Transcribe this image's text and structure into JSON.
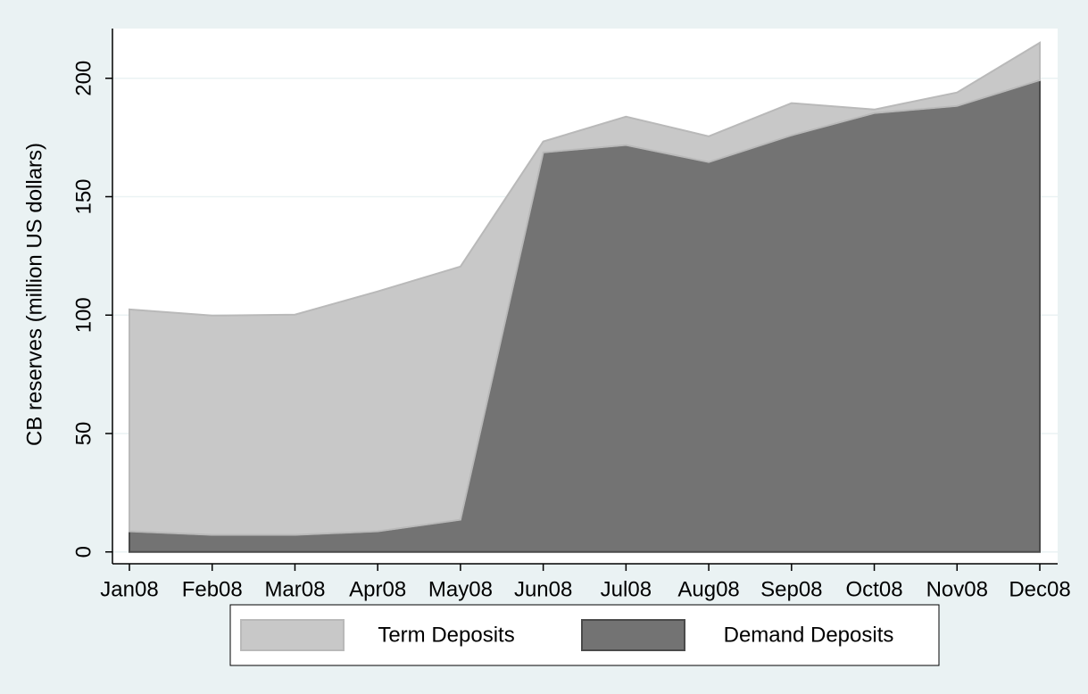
{
  "chart_data": {
    "type": "area",
    "y_label": "CB reserves (million US dollars)",
    "categories": [
      "Jan08",
      "Feb08",
      "Mar08",
      "Apr08",
      "May08",
      "Jun08",
      "Jul08",
      "Aug08",
      "Sep08",
      "Oct08",
      "Nov08",
      "Dec08"
    ],
    "series": [
      {
        "name": "Term Deposits",
        "color": "#c8c8c8",
        "values": [
          93.7,
          92.6,
          93.0,
          101.3,
          106.9,
          4.6,
          12.0,
          10.9,
          13.6,
          1.5,
          5.7,
          15.8
        ]
      },
      {
        "name": "Demand Deposits",
        "color": "#737373",
        "values": [
          8.7,
          7.2,
          7.2,
          8.7,
          13.6,
          168.7,
          171.8,
          164.6,
          175.9,
          185.3,
          188.3,
          199.2
        ]
      }
    ],
    "stacked": true,
    "ylim": [
      -5,
      221
    ],
    "yticks": [
      0,
      50,
      100,
      150,
      200
    ],
    "grid": true
  }
}
